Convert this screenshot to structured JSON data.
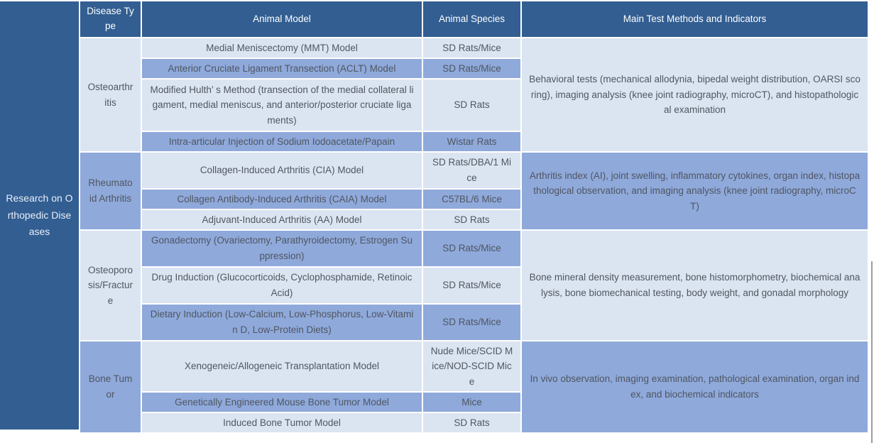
{
  "sidebar": {
    "title": "Research on Orthopedic Diseases"
  },
  "table": {
    "headers": [
      "Disease Type",
      "Animal Model",
      "Animal Species",
      "Main Test Methods and Indicators"
    ],
    "groups": [
      {
        "disease": "Osteoarthritis",
        "rows": [
          {
            "model": "Medial Meniscectomy (MMT) Model",
            "species": "SD Rats/Mice"
          },
          {
            "model": "Anterior Cruciate Ligament Transection (ACLT) Model",
            "species": "SD Rats/Mice"
          },
          {
            "model": "Modified Hulth’ s Method (transection of the medial collateral ligament, medial meniscus, and anterior/posterior cruciate ligaments)",
            "species": "SD Rats"
          },
          {
            "model": "Intra-articular Injection of Sodium Iodoacetate/Papain",
            "species": "Wistar Rats"
          }
        ],
        "methods": "Behavioral tests (mechanical allodynia, bipedal weight distribution, OARSI scoring), imaging analysis (knee joint radiography, microCT), and histopathological examination"
      },
      {
        "disease": "Rheumatoid Arthritis",
        "rows": [
          {
            "model": "Collagen-Induced Arthritis (CIA) Model",
            "species": "SD Rats/DBA/1 Mice"
          },
          {
            "model": "Collagen Antibody-Induced Arthritis (CAIA) Model",
            "species": "C57BL/6 Mice"
          },
          {
            "model": "Adjuvant-Induced Arthritis (AA) Model",
            "species": "SD Rats"
          }
        ],
        "methods": "Arthritis index (AI), joint swelling, inflammatory cytokines, organ index, histopathological observation, and imaging analysis (knee joint radiography, microCT)"
      },
      {
        "disease": "Osteoporosis/Fracture",
        "rows": [
          {
            "model": "Gonadectomy (Ovariectomy, Parathyroidectomy, Estrogen Suppression)",
            "species": "SD Rats/Mice"
          },
          {
            "model": "Drug Induction (Glucocorticoids, Cyclophosphamide, Retinoic Acid)",
            "species": "SD Rats/Mice"
          },
          {
            "model": "Dietary Induction (Low-Calcium, Low-Phosphorus, Low-Vitamin D, Low-Protein Diets)",
            "species": "SD Rats/Mice"
          }
        ],
        "methods": "Bone mineral density measurement, bone histomorphometry, biochemical analysis, bone biomechanical testing, body weight, and gonadal morphology"
      },
      {
        "disease": "Bone Tumor",
        "rows": [
          {
            "model": "Xenogeneic/Allogeneic Transplantation Model",
            "species": "Nude Mice/SCID Mice/NOD-SCID Mice"
          },
          {
            "model": "Genetically Engineered Mouse Bone Tumor Model",
            "species": "Mice"
          },
          {
            "model": "Induced Bone Tumor Model",
            "species": "SD Rats"
          }
        ],
        "methods": "In vivo observation, imaging examination, pathological examination, organ index, and biochemical indicators"
      }
    ]
  },
  "colors": {
    "header_bg": "#325E92",
    "sidebar_bg": "#325E92",
    "row_light": "#DBE5F1",
    "row_medium": "#8FA9DB",
    "header_text": "#FFFFFF",
    "body_text": "#4F5660",
    "cell_border": "#FFFFFF",
    "scrollbar": "#9C9C9C"
  }
}
